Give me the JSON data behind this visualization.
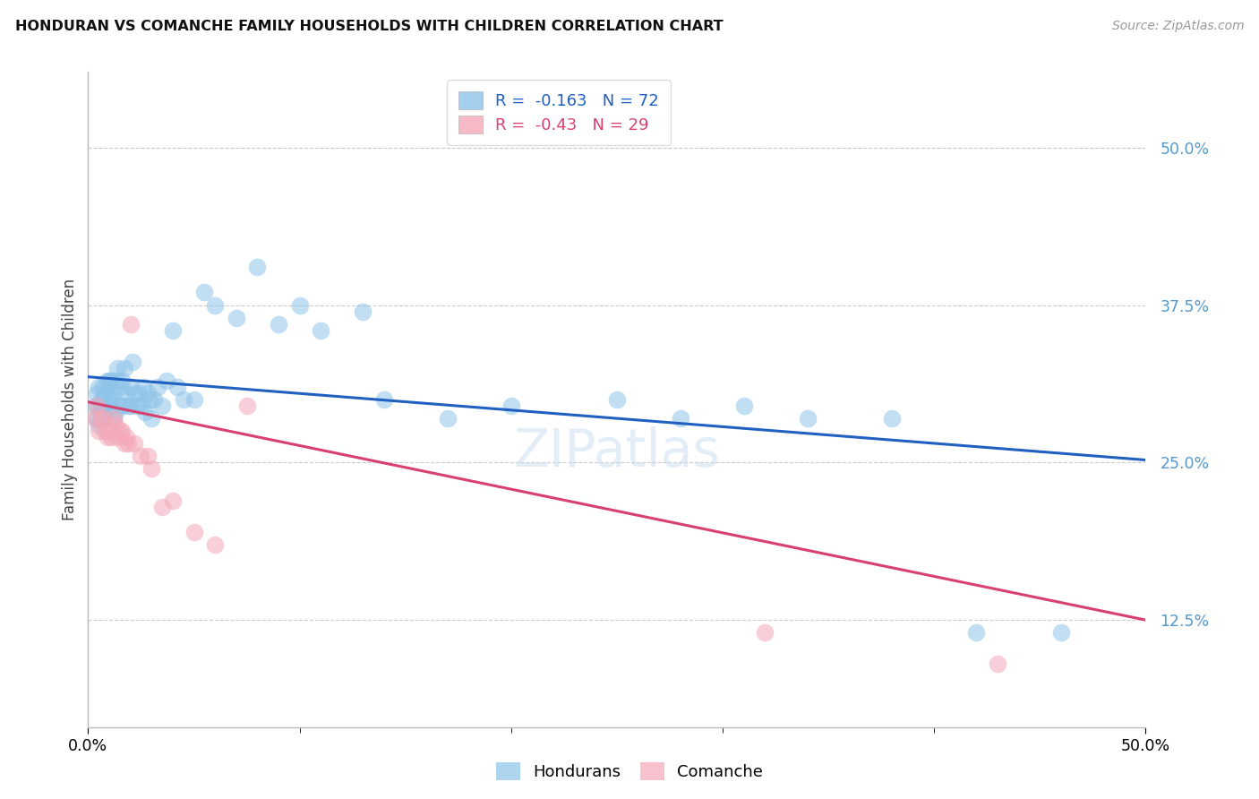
{
  "title": "HONDURAN VS COMANCHE FAMILY HOUSEHOLDS WITH CHILDREN CORRELATION CHART",
  "source": "Source: ZipAtlas.com",
  "ylabel": "Family Households with Children",
  "ytick_values": [
    0.5,
    0.375,
    0.25,
    0.125
  ],
  "xlim": [
    0.0,
    0.5
  ],
  "ylim": [
    0.04,
    0.56
  ],
  "honduran_color": "#8EC4E8",
  "comanche_color": "#F4A8B8",
  "honduran_line_color": "#2060C0",
  "comanche_line_color": "#D84070",
  "honduran_R": -0.163,
  "honduran_N": 72,
  "comanche_R": -0.43,
  "comanche_N": 29,
  "hon_line_x0": 0.0,
  "hon_line_y0": 0.318,
  "hon_line_x1": 0.5,
  "hon_line_y1": 0.252,
  "com_line_x0": 0.0,
  "com_line_y0": 0.298,
  "com_line_x1": 0.5,
  "com_line_y1": 0.125,
  "com_dash_threshold": 0.125,
  "honduran_x": [
    0.003,
    0.004,
    0.004,
    0.005,
    0.005,
    0.005,
    0.006,
    0.006,
    0.006,
    0.007,
    0.007,
    0.007,
    0.008,
    0.008,
    0.009,
    0.009,
    0.01,
    0.01,
    0.01,
    0.011,
    0.011,
    0.011,
    0.012,
    0.012,
    0.013,
    0.013,
    0.014,
    0.015,
    0.015,
    0.016,
    0.016,
    0.017,
    0.018,
    0.019,
    0.02,
    0.02,
    0.021,
    0.022,
    0.023,
    0.024,
    0.025,
    0.026,
    0.027,
    0.028,
    0.029,
    0.03,
    0.031,
    0.033,
    0.035,
    0.037,
    0.04,
    0.042,
    0.045,
    0.05,
    0.055,
    0.06,
    0.07,
    0.08,
    0.09,
    0.1,
    0.11,
    0.13,
    0.14,
    0.17,
    0.2,
    0.25,
    0.28,
    0.31,
    0.34,
    0.38,
    0.42,
    0.46
  ],
  "honduran_y": [
    0.295,
    0.305,
    0.285,
    0.31,
    0.295,
    0.28,
    0.3,
    0.295,
    0.285,
    0.31,
    0.3,
    0.295,
    0.305,
    0.29,
    0.315,
    0.295,
    0.305,
    0.295,
    0.315,
    0.3,
    0.315,
    0.295,
    0.305,
    0.285,
    0.315,
    0.29,
    0.325,
    0.31,
    0.295,
    0.315,
    0.295,
    0.325,
    0.305,
    0.295,
    0.31,
    0.295,
    0.33,
    0.305,
    0.295,
    0.305,
    0.295,
    0.31,
    0.29,
    0.305,
    0.3,
    0.285,
    0.3,
    0.31,
    0.295,
    0.315,
    0.355,
    0.31,
    0.3,
    0.3,
    0.385,
    0.375,
    0.365,
    0.405,
    0.36,
    0.375,
    0.355,
    0.37,
    0.3,
    0.285,
    0.295,
    0.3,
    0.285,
    0.295,
    0.285,
    0.285,
    0.115,
    0.115
  ],
  "comanche_x": [
    0.003,
    0.004,
    0.005,
    0.006,
    0.007,
    0.008,
    0.009,
    0.01,
    0.011,
    0.012,
    0.013,
    0.014,
    0.015,
    0.016,
    0.017,
    0.018,
    0.019,
    0.02,
    0.022,
    0.025,
    0.028,
    0.03,
    0.035,
    0.04,
    0.05,
    0.06,
    0.075,
    0.32,
    0.43
  ],
  "comanche_y": [
    0.285,
    0.295,
    0.275,
    0.285,
    0.285,
    0.275,
    0.27,
    0.275,
    0.27,
    0.285,
    0.28,
    0.27,
    0.275,
    0.275,
    0.265,
    0.27,
    0.265,
    0.36,
    0.265,
    0.255,
    0.255,
    0.245,
    0.215,
    0.22,
    0.195,
    0.185,
    0.295,
    0.115,
    0.09
  ]
}
